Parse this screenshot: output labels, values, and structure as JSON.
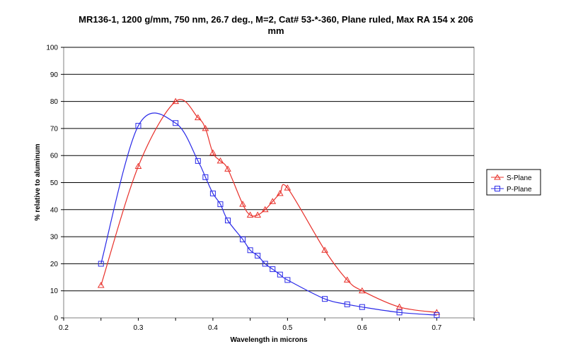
{
  "chart_data": {
    "type": "line",
    "title_lines": [
      "MR136-1, 1200 g/mm, 750 nm, 26.7 deg., M=2, Cat# 53-*-360, Plane ruled, Max RA 154 x 206",
      "mm"
    ],
    "xlabel": "Wavelength  in microns",
    "ylabel": "% relative to aluminum",
    "xlim": [
      0.2,
      0.75
    ],
    "ylim": [
      0,
      100
    ],
    "x_ticks": [
      "0.2",
      "0.3",
      "0.4",
      "0.5",
      "0.6",
      "0.7"
    ],
    "y_ticks": [
      "0",
      "10",
      "20",
      "30",
      "40",
      "50",
      "60",
      "70",
      "80",
      "90",
      "100"
    ],
    "grid": "horizontal",
    "legend": "right",
    "series": [
      {
        "name": "S-Plane",
        "color": "#e8302a",
        "marker": "triangle",
        "x": [
          0.25,
          0.3,
          0.35,
          0.38,
          0.39,
          0.4,
          0.41,
          0.42,
          0.44,
          0.45,
          0.46,
          0.47,
          0.48,
          0.49,
          0.5,
          0.55,
          0.58,
          0.6,
          0.65,
          0.7
        ],
        "y": [
          12,
          56,
          80,
          74,
          70,
          61,
          58,
          55,
          42,
          38,
          38,
          40,
          43,
          46,
          48,
          25,
          14,
          10,
          4,
          2
        ]
      },
      {
        "name": "P-Plane",
        "color": "#2a2ae8",
        "marker": "square",
        "x": [
          0.25,
          0.3,
          0.35,
          0.38,
          0.39,
          0.4,
          0.41,
          0.42,
          0.44,
          0.45,
          0.46,
          0.47,
          0.48,
          0.49,
          0.5,
          0.55,
          0.58,
          0.6,
          0.65,
          0.7
        ],
        "y": [
          20,
          71,
          72,
          58,
          52,
          46,
          42,
          36,
          29,
          25,
          23,
          20,
          18,
          16,
          14,
          7,
          5,
          4,
          2,
          1
        ]
      }
    ]
  }
}
